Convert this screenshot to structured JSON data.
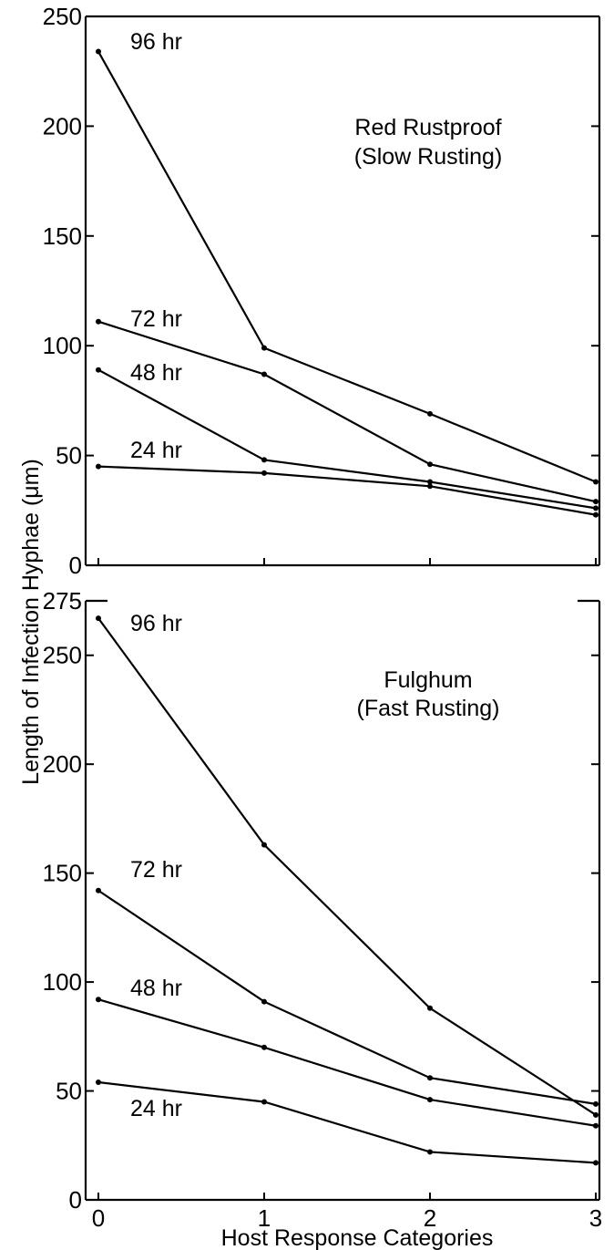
{
  "chart_data": [
    {
      "type": "line",
      "panel": "top",
      "title_line1": "Red   Rustproof",
      "title_line2": "(Slow  Rusting)",
      "x": [
        0,
        1,
        2,
        3
      ],
      "ylim": [
        0,
        250
      ],
      "yticks": [
        0,
        50,
        100,
        150,
        200,
        250
      ],
      "series": [
        {
          "name": "96 hr",
          "values": [
            234,
            99,
            69,
            38
          ]
        },
        {
          "name": "72 hr",
          "values": [
            111,
            87,
            46,
            29
          ]
        },
        {
          "name": "48 hr",
          "values": [
            89,
            48,
            38,
            26
          ]
        },
        {
          "name": "24 hr",
          "values": [
            45,
            42,
            36,
            23
          ]
        }
      ]
    },
    {
      "type": "line",
      "panel": "bottom",
      "title_line1": "Fulghum",
      "title_line2": "(Fast  Rusting)",
      "x": [
        0,
        1,
        2,
        3
      ],
      "ylim": [
        0,
        275
      ],
      "yticks": [
        0,
        50,
        100,
        150,
        200,
        250,
        275
      ],
      "series": [
        {
          "name": "96 hr",
          "values": [
            267,
            163,
            88,
            39
          ]
        },
        {
          "name": "72 hr",
          "values": [
            142,
            91,
            56,
            44
          ]
        },
        {
          "name": "48 hr",
          "values": [
            92,
            70,
            46,
            34
          ]
        },
        {
          "name": "24 hr",
          "values": [
            54,
            45,
            22,
            17
          ]
        }
      ]
    }
  ],
  "ylabel": "Length  of  Infection   Hyphae  (μm)",
  "xlabel": "Host  Response  Categories",
  "xticks": [
    "0",
    "1",
    "2",
    "3"
  ]
}
